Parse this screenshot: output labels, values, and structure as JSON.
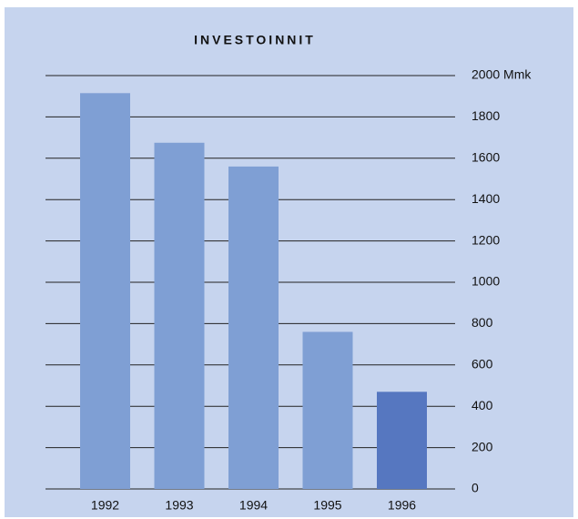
{
  "chart_data": {
    "type": "bar",
    "title": "INVESTOINNIT",
    "categories": [
      "1992",
      "1993",
      "1994",
      "1995",
      "1996"
    ],
    "values": [
      1915,
      1675,
      1560,
      760,
      470
    ],
    "colors": [
      "#7f9fd4",
      "#7f9fd4",
      "#7f9fd4",
      "#7f9fd4",
      "#5677c0"
    ],
    "ylim": [
      0,
      2000
    ],
    "yticks": [
      0,
      200,
      400,
      600,
      800,
      1000,
      1200,
      1400,
      1600,
      1800,
      {
        "value": 2000,
        "label": "2000 Mmk"
      }
    ],
    "grid": true,
    "y_axis_side": "right"
  }
}
